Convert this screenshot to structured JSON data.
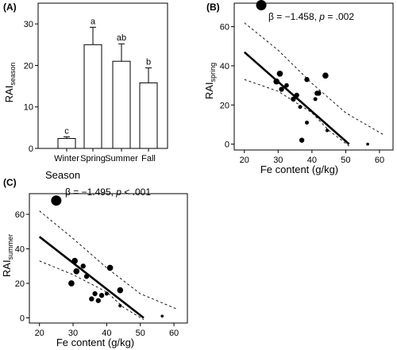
{
  "figure": {
    "panels": [
      {
        "label": "(A)"
      },
      {
        "label": "(B)"
      },
      {
        "label": "(C)"
      }
    ]
  },
  "chart_data": [
    {
      "type": "bar",
      "categories": [
        "Winter",
        "Spring",
        "Summer",
        "Fall"
      ],
      "values": [
        2.4,
        25.0,
        21.0,
        15.8
      ],
      "error_upper": [
        0.4,
        4.2,
        4.2,
        3.6
      ],
      "letters": [
        "c",
        "a",
        "ab",
        "b"
      ],
      "xlabel": "Season",
      "ylabel": "RAI",
      "ylabel_sub": "season",
      "ylim": [
        0,
        35
      ],
      "yticks": [
        0,
        10,
        20,
        30
      ],
      "colors": {
        "bar_fill": "#ffffff",
        "bar_stroke": "#000000"
      }
    },
    {
      "type": "scatter",
      "xlabel": "Fe content (g/kg)",
      "ylabel": "RAI",
      "ylabel_sub": "spring",
      "annotation": {
        "beta": "β = −1.458, ",
        "p_label": "p",
        "p_rest": " = .002"
      },
      "xlim": [
        17,
        64
      ],
      "ylim": [
        -3,
        72
      ],
      "xticks": [
        20,
        30,
        40,
        50,
        60
      ],
      "yticks": [
        0,
        20,
        40,
        60
      ],
      "points": [
        {
          "x": 25,
          "y": 71,
          "size": 9
        },
        {
          "x": 29.5,
          "y": 32,
          "size": 5
        },
        {
          "x": 30.5,
          "y": 36,
          "size": 5
        },
        {
          "x": 31,
          "y": 28,
          "size": 4
        },
        {
          "x": 32.5,
          "y": 30,
          "size": 3.5
        },
        {
          "x": 34.5,
          "y": 23,
          "size": 4
        },
        {
          "x": 35.5,
          "y": 25,
          "size": 4
        },
        {
          "x": 36.5,
          "y": 19,
          "size": 3
        },
        {
          "x": 37,
          "y": 2,
          "size": 4
        },
        {
          "x": 38.5,
          "y": 33,
          "size": 4
        },
        {
          "x": 38.5,
          "y": 11,
          "size": 3
        },
        {
          "x": 41,
          "y": 23,
          "size": 3
        },
        {
          "x": 41.5,
          "y": 26,
          "size": 4
        },
        {
          "x": 42,
          "y": 26,
          "size": 4
        },
        {
          "x": 44,
          "y": 35,
          "size": 5
        },
        {
          "x": 44.5,
          "y": 7,
          "size": 2.5
        },
        {
          "x": 56.5,
          "y": 0,
          "size": 2
        }
      ],
      "fit": {
        "x": [
          20,
          51
        ],
        "y": [
          47,
          0
        ]
      },
      "ci_upper": {
        "x": [
          20,
          30,
          40,
          50,
          61
        ],
        "y": [
          62,
          48,
          31,
          16,
          5
        ]
      },
      "ci_lower": {
        "x": [
          20,
          30,
          40,
          45,
          51
        ],
        "y": [
          33,
          27,
          16,
          7,
          -1
        ]
      }
    },
    {
      "type": "scatter",
      "xlabel": "Fe content (g/kg)",
      "ylabel": "RAI",
      "ylabel_sub": "summer",
      "annotation": {
        "beta": "β = −1.495, ",
        "p_label": "p",
        "p_rest": " < .001"
      },
      "xlim": [
        17,
        64
      ],
      "ylim": [
        -3,
        72
      ],
      "xticks": [
        20,
        30,
        40,
        50,
        60
      ],
      "yticks": [
        0,
        20,
        40,
        60
      ],
      "points": [
        {
          "x": 25,
          "y": 68,
          "size": 9
        },
        {
          "x": 29.5,
          "y": 20,
          "size": 5
        },
        {
          "x": 30.5,
          "y": 33,
          "size": 5
        },
        {
          "x": 31,
          "y": 27,
          "size": 5
        },
        {
          "x": 33,
          "y": 30,
          "size": 4
        },
        {
          "x": 34,
          "y": 24,
          "size": 4
        },
        {
          "x": 35.5,
          "y": 11,
          "size": 4
        },
        {
          "x": 36.5,
          "y": 14,
          "size": 4
        },
        {
          "x": 37.5,
          "y": 10,
          "size": 4
        },
        {
          "x": 38.5,
          "y": 13,
          "size": 4
        },
        {
          "x": 40,
          "y": 14,
          "size": 3
        },
        {
          "x": 41,
          "y": 29,
          "size": 5
        },
        {
          "x": 44,
          "y": 16,
          "size": 5
        },
        {
          "x": 44,
          "y": 7,
          "size": 2.5
        },
        {
          "x": 56.5,
          "y": 1,
          "size": 2
        }
      ],
      "fit": {
        "x": [
          20,
          51
        ],
        "y": [
          47,
          0
        ]
      },
      "ci_upper": {
        "x": [
          20,
          30,
          40,
          50,
          61
        ],
        "y": [
          62,
          46,
          29,
          14,
          5
        ]
      },
      "ci_lower": {
        "x": [
          20,
          30,
          40,
          45,
          51
        ],
        "y": [
          33,
          25,
          15,
          6,
          -1
        ]
      }
    }
  ]
}
